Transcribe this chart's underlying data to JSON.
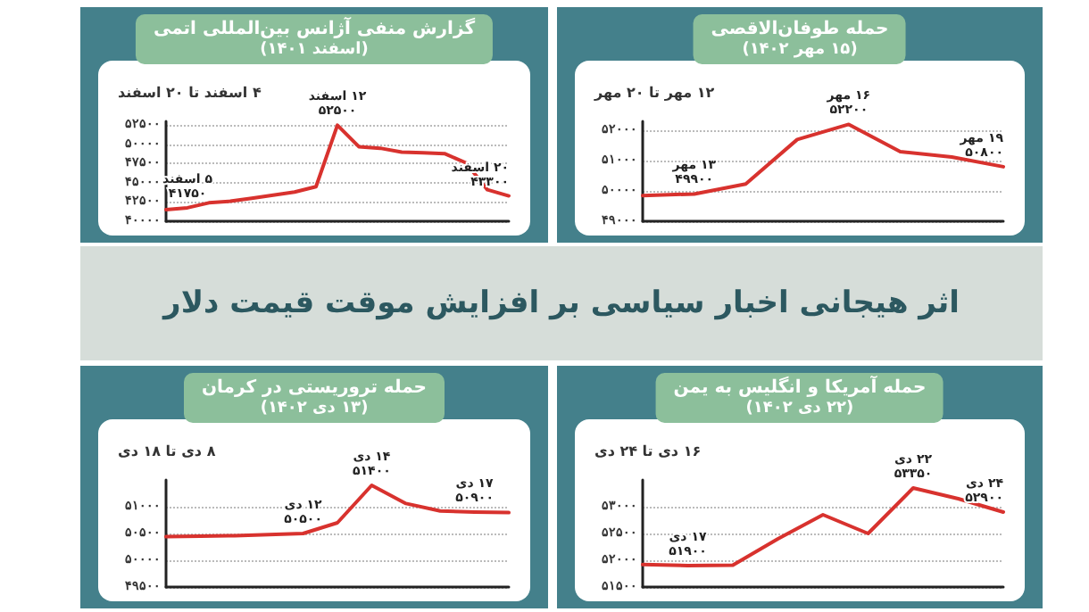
{
  "chart_data": [
    {
      "type": "line",
      "title": "گزارش منفی آژانس بین‌المللی اتمی",
      "subtitle": "(اسفند ۱۴۰۱)",
      "marker": "none",
      "grid": "y",
      "categories": [
        null,
        null,
        null,
        null,
        null,
        null,
        null,
        null,
        null,
        null,
        null,
        null,
        null,
        null,
        null,
        null,
        null
      ],
      "series": [
        {
          "color": "#d8322e",
          "values": [
            41500,
            41750,
            42400,
            42600,
            43000,
            43400,
            43800,
            44500,
            52500,
            49700,
            49500,
            49000,
            48900,
            48800,
            47600,
            44100,
            43300
          ]
        }
      ],
      "ylim": [
        40000,
        53000
      ],
      "yticks": [
        {
          "value": 40000,
          "label": "۴۰۰۰۰"
        },
        {
          "value": 42500,
          "label": "۴۲۵۰۰"
        },
        {
          "value": 45000,
          "label": "۴۵۰۰۰"
        },
        {
          "value": 47500,
          "label": "۴۷۵۰۰"
        },
        {
          "value": 50000,
          "label": "۵۰۰۰۰"
        },
        {
          "value": 52500,
          "label": "۵۲۵۰۰"
        }
      ],
      "annotations": [
        "۴ اسفند تا ۲۰ اسفند",
        {
          "text": "۵ اسفند\n۴۱۷۵۰",
          "y": 41750
        },
        {
          "text": "۱۲ اسفند\n۵۲۵۰۰",
          "y": 52500
        },
        {
          "text": "۲۰ اسفند\n۴۳۳۰۰",
          "y": 43300
        }
      ]
    },
    {
      "type": "line",
      "title": "حمله طوفان‌الاقصی",
      "subtitle": "(۱۵ مهر ۱۴۰۲)",
      "marker": "none",
      "grid": "y",
      "categories": [
        null,
        null,
        null,
        null,
        null,
        null,
        null,
        null
      ],
      "series": [
        {
          "color": "#d8322e",
          "values": [
            49850,
            49900,
            50230,
            51700,
            52200,
            51300,
            51120,
            50800
          ]
        }
      ],
      "ylim": [
        49000,
        52300
      ],
      "yticks": [
        {
          "value": 49000,
          "label": "۴۹۰۰۰"
        },
        {
          "value": 50000,
          "label": "۵۰۰۰۰"
        },
        {
          "value": 51000,
          "label": "۵۱۰۰۰"
        },
        {
          "value": 52000,
          "label": "۵۲۰۰۰"
        }
      ],
      "annotations": [
        "۱۲ مهر تا ۲۰ مهر",
        {
          "text": "۱۳ مهر\n۴۹۹۰۰",
          "y": 49900
        },
        {
          "text": "۱۶ مهر\n۵۲۲۰۰",
          "y": 52200
        },
        {
          "text": "۱۹ مهر\n۵۰۸۰۰",
          "y": 50800
        }
      ]
    },
    {
      "type": "other",
      "title": "اثر هیجانی اخبار سیاسی بر افزایش موقت قیمت دلار"
    },
    {
      "type": "line",
      "title": "حمله تروریستی در کرمان",
      "subtitle": "(۱۳ دی ۱۴۰۲)",
      "marker": "none",
      "grid": "y",
      "categories": [
        null,
        null,
        null,
        null,
        null,
        null,
        null,
        null,
        null,
        null,
        null
      ],
      "series": [
        {
          "color": "#d8322e",
          "values": [
            50440,
            50450,
            50460,
            50480,
            50500,
            50700,
            51400,
            51060,
            50920,
            50900,
            50890
          ]
        }
      ],
      "ylim": [
        49500,
        51500
      ],
      "yticks": [
        {
          "value": 49500,
          "label": "۴۹۵۰۰"
        },
        {
          "value": 50000,
          "label": "۵۰۰۰۰"
        },
        {
          "value": 50500,
          "label": "۵۰۵۰۰"
        },
        {
          "value": 51000,
          "label": "۵۱۰۰۰"
        }
      ],
      "annotations": [
        "۸ دی تا ۱۸ دی",
        {
          "text": "۱۲ دی\n۵۰۵۰۰",
          "y": 50500
        },
        {
          "text": "۱۴ دی\n۵۱۴۰۰",
          "y": 51400
        },
        {
          "text": "۱۷ دی\n۵۰۹۰۰",
          "y": 50900
        }
      ]
    },
    {
      "type": "line",
      "title": "حمله آمریکا و انگلیس به یمن",
      "subtitle": "(۲۲ دی ۱۴۰۲)",
      "marker": "none",
      "grid": "y",
      "categories": [
        null,
        null,
        null,
        null,
        null,
        null,
        null,
        null,
        null
      ],
      "series": [
        {
          "color": "#d8322e",
          "values": [
            51920,
            51900,
            51910,
            52400,
            52850,
            52500,
            53350,
            53150,
            52900
          ]
        }
      ],
      "ylim": [
        51500,
        53500
      ],
      "yticks": [
        {
          "value": 51500,
          "label": "۵۱۵۰۰"
        },
        {
          "value": 52000,
          "label": "۵۲۰۰۰"
        },
        {
          "value": 52500,
          "label": "۵۲۵۰۰"
        },
        {
          "value": 53000,
          "label": "۵۳۰۰۰"
        }
      ],
      "annotations": [
        "۱۶ دی تا ۲۴ دی",
        {
          "text": "۱۷ دی\n۵۱۹۰۰",
          "y": 51900
        },
        {
          "text": "۲۲ دی\n۵۳۳۵۰",
          "y": 53350
        },
        {
          "text": "۲۴ دی\n۵۲۹۰۰",
          "y": 52900
        }
      ]
    }
  ]
}
